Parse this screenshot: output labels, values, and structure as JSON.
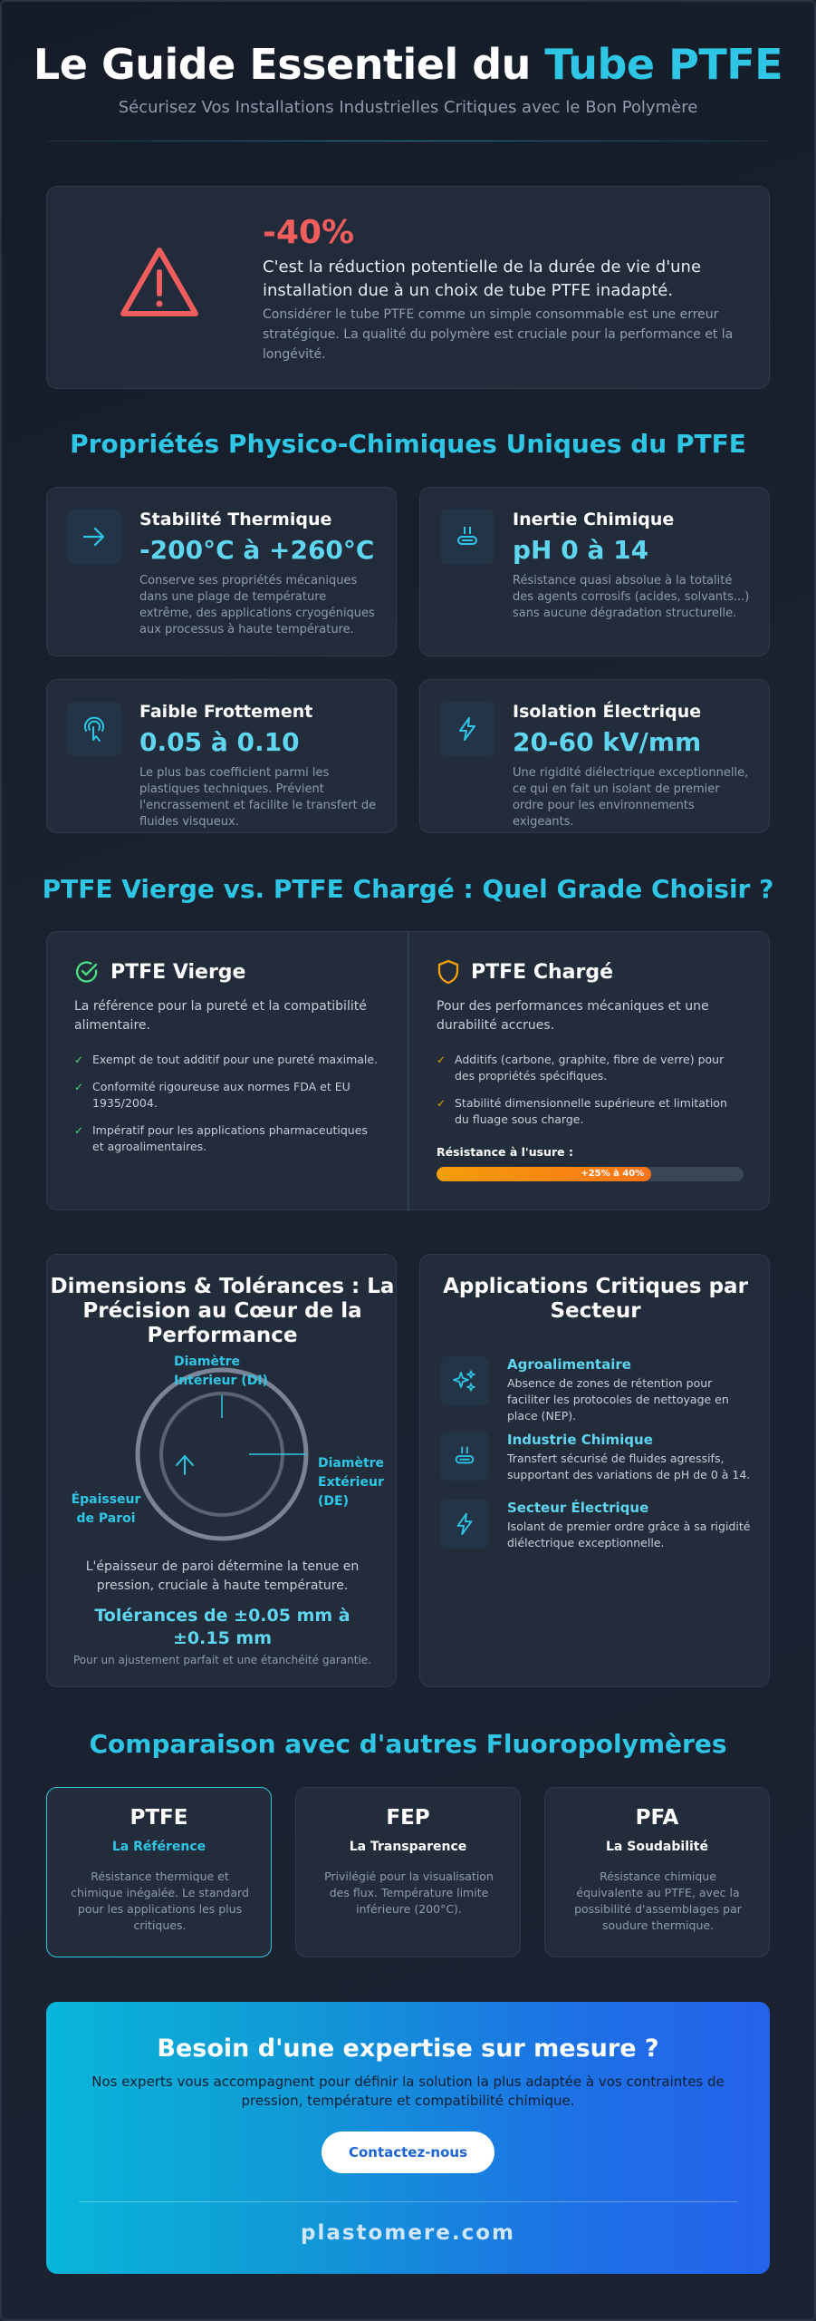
{
  "header": {
    "title_main": "Le Guide Essentiel du ",
    "title_accent": "Tube PTFE",
    "subtitle": "Sécurisez Vos Installations Industrielles Critiques avec le Bon Polymère"
  },
  "alert": {
    "stat": "-40%",
    "lead": "C'est la réduction potentielle de la durée de vie d'une installation due à un choix de tube PTFE inadapté.",
    "note": "Considérer le tube PTFE comme un simple consommable est une erreur stratégique. La qualité du polymère est cruciale pour la performance et la longévité."
  },
  "properties": {
    "section_title": "Propriétés Physico-Chimiques Uniques du PTFE",
    "items": [
      {
        "icon": "arrow-right-icon",
        "title": "Stabilité Thermique",
        "value": "-200°C à +260°C",
        "desc": "Conserve ses propriétés mécaniques dans une plage de température extrême, des applications cryogéniques aux processus à haute température."
      },
      {
        "icon": "flask-icon",
        "title": "Inertie Chimique",
        "value": "pH 0 à 14",
        "desc": "Résistance quasi absolue à la totalité des agents corrosifs (acides, solvants...) sans aucune dégradation structurelle."
      },
      {
        "icon": "touch-icon",
        "title": "Faible Frottement",
        "value": "0.05 à 0.10",
        "desc": "Le plus bas coefficient parmi les plastiques techniques. Prévient l'encrassement et facilite le transfert de fluides visqueux."
      },
      {
        "icon": "lightning-icon",
        "title": "Isolation Électrique",
        "value": "20-60 kV/mm",
        "desc": "Une rigidité diélectrique exceptionnelle, ce qui en fait un isolant de premier ordre pour les environnements exigeants."
      }
    ]
  },
  "grades": {
    "section_title": "PTFE Vierge vs. PTFE Chargé : Quel Grade Choisir ?",
    "virgin": {
      "title": "PTFE Vierge",
      "lead": "La référence pour la pureté et la compatibilité alimentaire.",
      "check": "✓",
      "bullets": [
        "Exempt de tout additif pour une pureté maximale.",
        "Conformité rigoureuse aux normes FDA et EU 1935/2004.",
        "Impératif pour les applications pharmaceutiques et agroalimentaires."
      ],
      "color": "#4ade80"
    },
    "filled": {
      "title": "PTFE Chargé",
      "lead": "Pour des performances mécaniques et une durabilité accrues.",
      "check": "✓",
      "bullets": [
        "Additifs (carbone, graphite, fibre de verre) pour des propriétés spécifiques.",
        "Stabilité dimensionnelle supérieure et limitation du fluage sous charge."
      ],
      "wear_label": "Résistance à l'usure :",
      "wear_badge": "+25% à 40%",
      "wear_fraction": 0.7,
      "color": "#f59e0b"
    }
  },
  "dimensions": {
    "title": "Dimensions & Tolérances : La Précision au Cœur de la Performance",
    "label_di": "Diamètre Intérieur (DI)",
    "label_de": "Diamètre Extérieur (DE)",
    "label_wall": "Épaisseur de Paroi",
    "note": "L'épaisseur de paroi détermine la tenue en pression, cruciale à haute température.",
    "tolerance": "Tolérances de ±0.05 mm à ±0.15 mm",
    "tolerance_note": "Pour un ajustement parfait et une étanchéité garantie."
  },
  "applications": {
    "title": "Applications Critiques par Secteur",
    "items": [
      {
        "icon": "sparkle-icon",
        "title": "Agroalimentaire",
        "desc": "Absence de zones de rétention pour faciliter les protocoles de nettoyage en place (NEP)."
      },
      {
        "icon": "flask-icon",
        "title": "Industrie Chimique",
        "desc": "Transfert sécurisé de fluides agressifs, supportant des variations de pH de 0 à 14."
      },
      {
        "icon": "lightning-icon",
        "title": "Secteur Électrique",
        "desc": "Isolant de premier ordre grâce à sa rigidité diélectrique exceptionnelle."
      }
    ]
  },
  "comparison": {
    "section_title": "Comparaison avec d'autres Fluoropolymères",
    "items": [
      {
        "name": "PTFE",
        "tag": "La Référence",
        "desc": "Résistance thermique et chimique inégalée. Le standard pour les applications les plus critiques."
      },
      {
        "name": "FEP",
        "tag": "La Transparence",
        "desc": "Privilégié pour la visualisation des flux. Température limite inférieure (200°C)."
      },
      {
        "name": "PFA",
        "tag": "La Soudabilité",
        "desc": "Résistance chimique équivalente au PTFE, avec la possibilité d'assemblages par soudure thermique."
      }
    ]
  },
  "cta": {
    "title": "Besoin d'une expertise sur mesure ?",
    "text": "Nos experts vous accompagnent pour définir la solution la plus adaptée à vos contraintes de pression, température et compatibilité chimique.",
    "button": "Contactez-nous",
    "site": "plastomere.com"
  },
  "colors": {
    "accent": "#2fc6e6",
    "danger": "#ef5d5d",
    "success": "#4ade80",
    "warning": "#f59e0b"
  }
}
